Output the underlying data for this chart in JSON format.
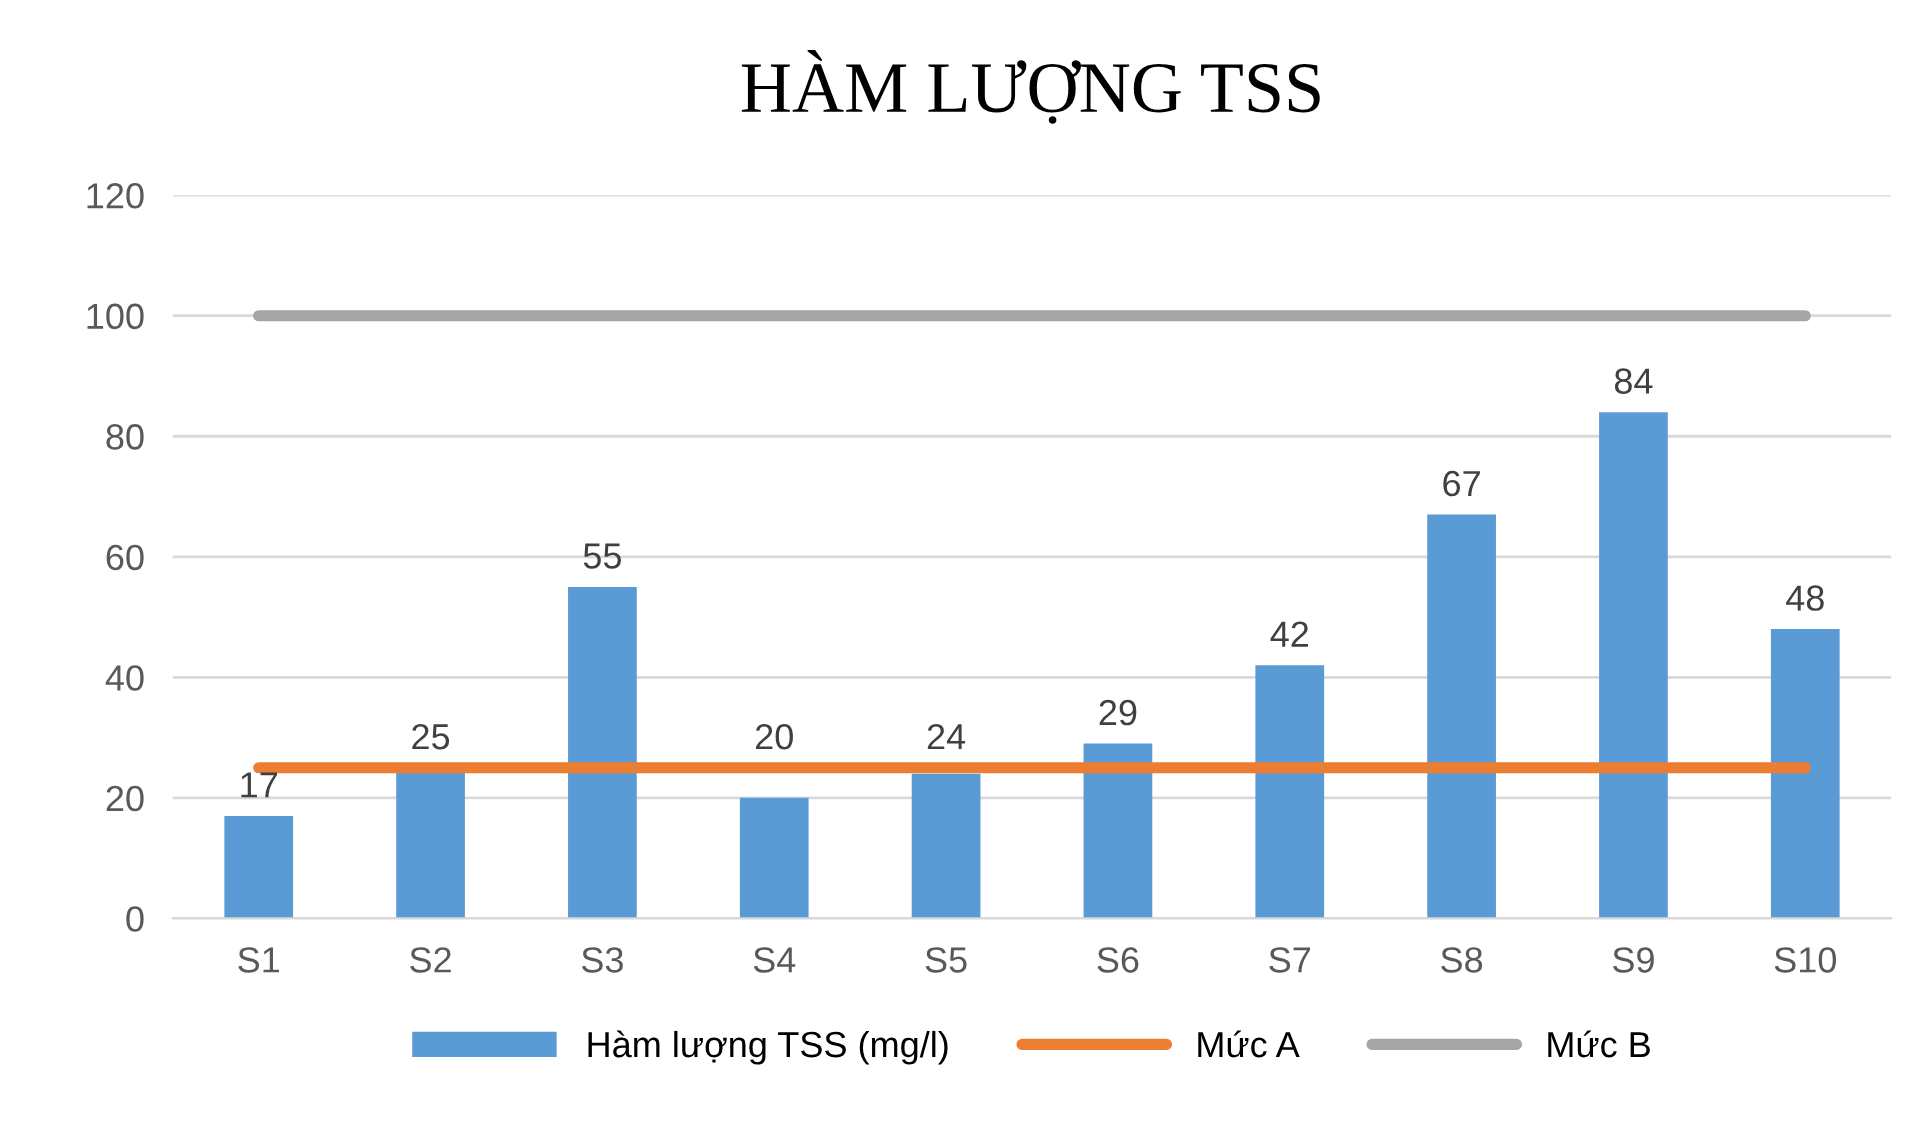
{
  "chart_data": {
    "type": "bar",
    "title": "HÀM LƯỢNG TSS",
    "categories": [
      "S1",
      "S2",
      "S3",
      "S4",
      "S5",
      "S6",
      "S7",
      "S8",
      "S9",
      "S10"
    ],
    "series": [
      {
        "name": "Hàm lượng TSS (mg/l)",
        "color": "#5b9bd5",
        "values": [
          17,
          25,
          55,
          20,
          24,
          29,
          42,
          67,
          84,
          48
        ],
        "value_labels": [
          "17",
          "25",
          "55",
          "20",
          "24",
          "29",
          "42",
          "67",
          "84",
          "48"
        ]
      },
      {
        "name": "Mức A",
        "type": "line",
        "color": "#ed7d31",
        "values": [
          25,
          25,
          25,
          25,
          25,
          25,
          25,
          25,
          25,
          25
        ]
      },
      {
        "name": "Mức B",
        "type": "line",
        "color": "#a5a5a5",
        "values": [
          100,
          100,
          100,
          100,
          100,
          100,
          100,
          100,
          100,
          100
        ]
      }
    ],
    "ylim": [
      0,
      120
    ],
    "yticks": [
      0,
      20,
      40,
      60,
      80,
      100,
      120
    ],
    "grid": "y",
    "legend": "bottom",
    "marker": "none",
    "line_style": "solid"
  }
}
